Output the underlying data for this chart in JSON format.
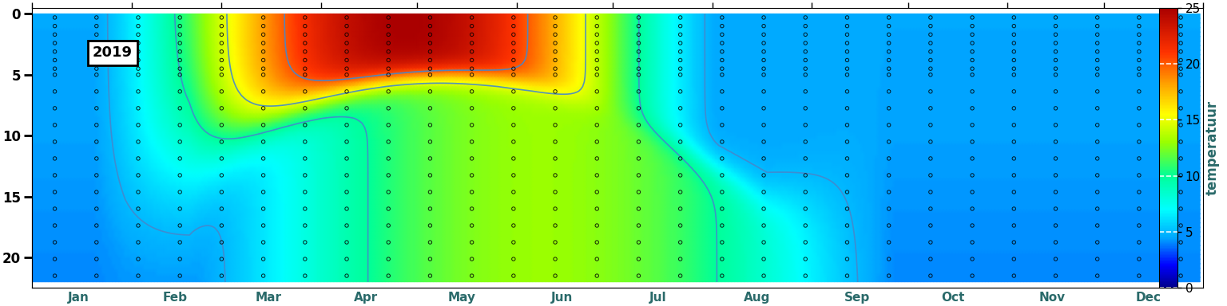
{
  "colorbar_label": "temperatuur",
  "colorbar_ticks": [
    0,
    5,
    10,
    15,
    20,
    25
  ],
  "year_label": "2019",
  "months": [
    "Jan",
    "Feb",
    "Mar",
    "Apr",
    "May",
    "Jun",
    "Jul",
    "Aug",
    "Sep",
    "Oct",
    "Nov",
    "Dec"
  ],
  "depth_max": 22,
  "temp_min": 0,
  "temp_max": 25,
  "contour_color": "#4488cc",
  "contour_levels": [
    5,
    10,
    15,
    20
  ],
  "fig_width": 15.36,
  "fig_height": 3.84,
  "background_color": "white",
  "cmap_colors": [
    [
      0.0,
      "#00008B"
    ],
    [
      0.08,
      "#0000FF"
    ],
    [
      0.18,
      "#00AAFF"
    ],
    [
      0.28,
      "#00FFFF"
    ],
    [
      0.4,
      "#00FF99"
    ],
    [
      0.52,
      "#99FF00"
    ],
    [
      0.62,
      "#FFFF00"
    ],
    [
      0.72,
      "#FFAA00"
    ],
    [
      0.84,
      "#FF3300"
    ],
    [
      1.0,
      "#AA0000"
    ]
  ]
}
